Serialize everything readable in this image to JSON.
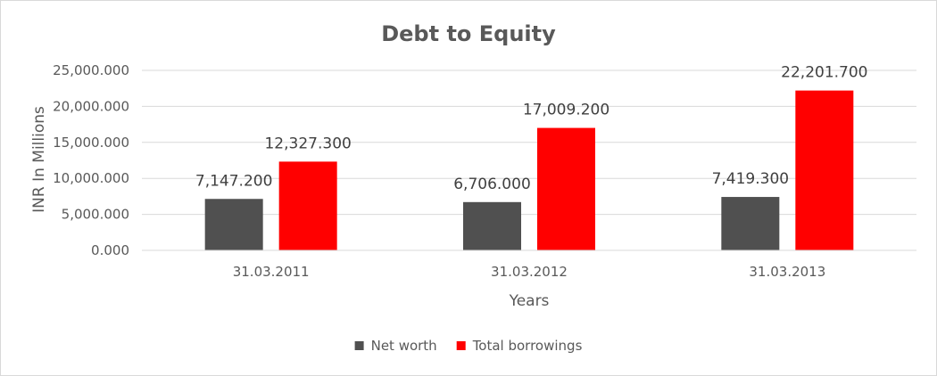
{
  "chart_data": {
    "type": "bar",
    "title": "Debt to Equity",
    "xlabel": "Years",
    "ylabel": "INR In Millions",
    "categories": [
      "31.03.2011",
      "31.03.2012",
      "31.03.2013"
    ],
    "series": [
      {
        "name": "Net worth",
        "color": "#505050",
        "values": [
          7147.2,
          6706.0,
          7419.3
        ],
        "labels": [
          "7,147.200",
          "6,706.000",
          "7,419.300"
        ]
      },
      {
        "name": "Total borrowings",
        "color": "#ff0000",
        "values": [
          12327.3,
          17009.2,
          22201.7
        ],
        "labels": [
          "12,327.300",
          "17,009.200",
          "22,201.700"
        ]
      }
    ],
    "ylim": [
      0,
      25000
    ],
    "yticks": [
      0,
      5000,
      10000,
      15000,
      20000,
      25000
    ],
    "ytick_labels": [
      "0.000",
      "5,000.000",
      "10,000.000",
      "15,000.000",
      "20,000.000",
      "25,000.000"
    ],
    "grid": true,
    "legend_position": "bottom"
  }
}
